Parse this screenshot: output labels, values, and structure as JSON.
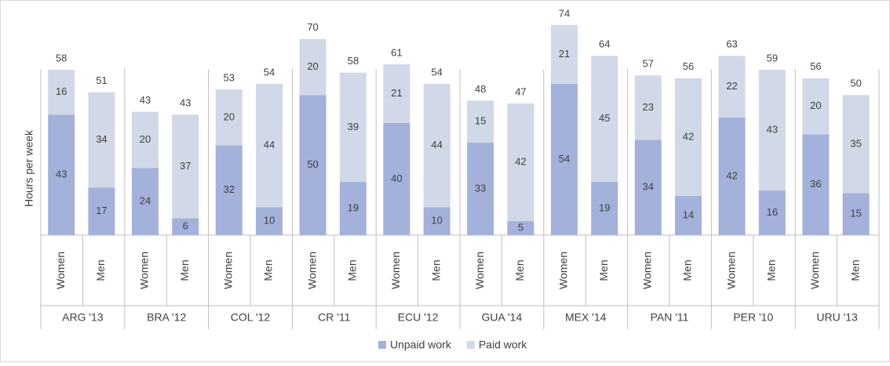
{
  "chart_data": {
    "type": "stacked-bar",
    "y_label": "Hours per week",
    "groups": [
      "ARG '13",
      "BRA '12",
      "COL '12",
      "CR '11",
      "ECU '12",
      "GUA '14",
      "MEX '14",
      "PAN '11",
      "PER '10",
      "URU '13"
    ],
    "categories": [
      "Women",
      "Men",
      "Women",
      "Men",
      "Women",
      "Men",
      "Women",
      "Men",
      "Women",
      "Men",
      "Women",
      "Men",
      "Women",
      "Men",
      "Women",
      "Men",
      "Women",
      "Men",
      "Women",
      "Men"
    ],
    "series": [
      {
        "name": "Unpaid work",
        "color": "#a3b1db",
        "values": [
          43,
          17,
          24,
          6,
          32,
          10,
          50,
          19,
          40,
          10,
          33,
          5,
          54,
          19,
          34,
          14,
          42,
          16,
          36,
          15
        ]
      },
      {
        "name": "Paid work",
        "color": "#d1d8e7",
        "values": [
          16,
          34,
          20,
          37,
          20,
          44,
          20,
          39,
          21,
          44,
          15,
          42,
          21,
          45,
          23,
          42,
          22,
          43,
          20,
          35
        ]
      }
    ],
    "totals": [
      58,
      51,
      43,
      43,
      53,
      54,
      70,
      58,
      61,
      54,
      48,
      47,
      74,
      64,
      57,
      56,
      63,
      59,
      56,
      50
    ],
    "ylim": [
      0,
      80
    ],
    "legend": "bottom"
  }
}
